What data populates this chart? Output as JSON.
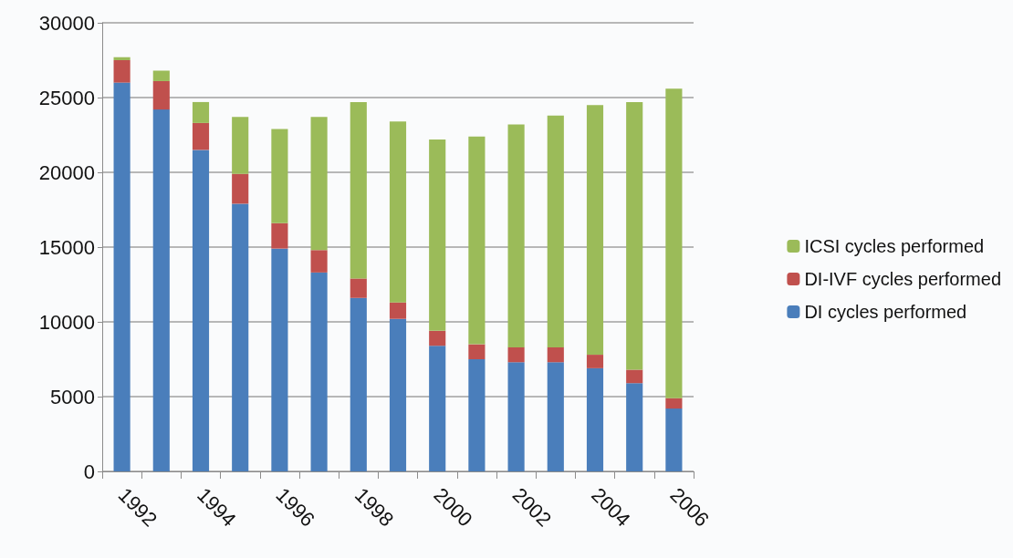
{
  "chart_data": {
    "type": "bar",
    "stacked": true,
    "categories": [
      "1992",
      null,
      "1994",
      null,
      "1996",
      null,
      "1998",
      null,
      "2000",
      null,
      "2002",
      null,
      "2004",
      null,
      "2006"
    ],
    "series": [
      {
        "name": "DI cycles performed",
        "color": "#4a7ebb",
        "values": [
          26000,
          24200,
          21500,
          17900,
          14900,
          13300,
          11600,
          10200,
          8400,
          7500,
          7300,
          7300,
          6900,
          5900,
          4200
        ]
      },
      {
        "name": "DI-IVF cycles performed",
        "color": "#c0504d",
        "values": [
          1500,
          1900,
          1800,
          2000,
          1700,
          1500,
          1300,
          1100,
          1000,
          1000,
          1000,
          1000,
          900,
          900,
          700
        ]
      },
      {
        "name": "ICSI cycles performed",
        "color": "#9bbb59",
        "values": [
          200,
          700,
          1400,
          3800,
          6300,
          8900,
          11800,
          12100,
          12800,
          13900,
          14900,
          15500,
          16700,
          17900,
          20700
        ]
      }
    ],
    "ylim": [
      0,
      30000
    ],
    "yticks": [
      0,
      5000,
      10000,
      15000,
      20000,
      25000,
      30000
    ],
    "grid": "y",
    "legend": "right"
  }
}
